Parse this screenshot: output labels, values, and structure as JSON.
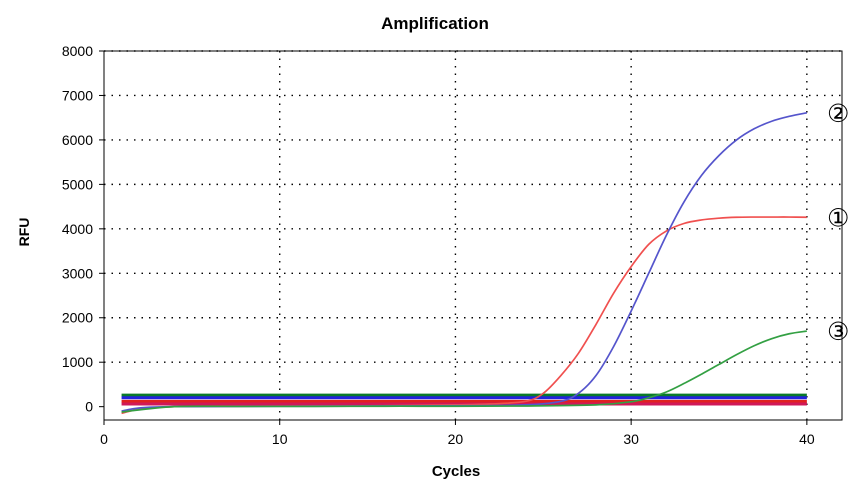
{
  "chart_data": {
    "type": "line",
    "title": "Amplification",
    "xlabel": "Cycles",
    "ylabel": "RFU",
    "xlim": [
      0,
      42
    ],
    "ylim": [
      -300,
      8000
    ],
    "xticks": [
      0,
      10,
      20,
      30,
      40
    ],
    "yticks": [
      0,
      1000,
      2000,
      3000,
      4000,
      5000,
      6000,
      7000,
      8000
    ],
    "grid": "dotted",
    "series": [
      {
        "label": "①",
        "color": "#f0504f",
        "x": [
          1,
          2,
          4,
          8,
          12,
          16,
          20,
          22,
          24,
          25,
          26,
          27,
          28,
          29,
          30,
          31,
          32,
          33,
          34,
          35,
          36,
          37,
          38,
          39,
          40
        ],
        "y": [
          -150,
          -60,
          0,
          10,
          15,
          20,
          40,
          60,
          120,
          300,
          700,
          1200,
          1850,
          2550,
          3150,
          3650,
          3950,
          4120,
          4200,
          4240,
          4260,
          4265,
          4265,
          4265,
          4260
        ]
      },
      {
        "label": "②",
        "color": "#5555cc",
        "x": [
          1,
          2,
          4,
          8,
          12,
          16,
          20,
          24,
          26,
          27,
          28,
          29,
          30,
          31,
          32,
          33,
          34,
          35,
          36,
          37,
          38,
          39,
          40
        ],
        "y": [
          -100,
          -30,
          0,
          5,
          10,
          15,
          20,
          40,
          120,
          300,
          700,
          1350,
          2150,
          3000,
          3850,
          4600,
          5200,
          5650,
          6000,
          6250,
          6420,
          6530,
          6610
        ]
      },
      {
        "label": "③",
        "color": "#33a043",
        "x": [
          1,
          4,
          8,
          12,
          16,
          20,
          24,
          28,
          30,
          31,
          32,
          33,
          34,
          35,
          36,
          37,
          38,
          39,
          40
        ],
        "y": [
          -120,
          0,
          5,
          5,
          10,
          10,
          15,
          40,
          110,
          200,
          330,
          520,
          730,
          950,
          1170,
          1370,
          1530,
          1640,
          1700
        ]
      }
    ],
    "threshold_lines": [
      {
        "y": 260,
        "color": "#0a7a2a"
      },
      {
        "y": 200,
        "color": "#2222dd"
      },
      {
        "y": 120,
        "color": "#e02020"
      },
      {
        "y": 60,
        "color": "#d01858"
      }
    ],
    "threshold_xrange": [
      1,
      40
    ]
  }
}
